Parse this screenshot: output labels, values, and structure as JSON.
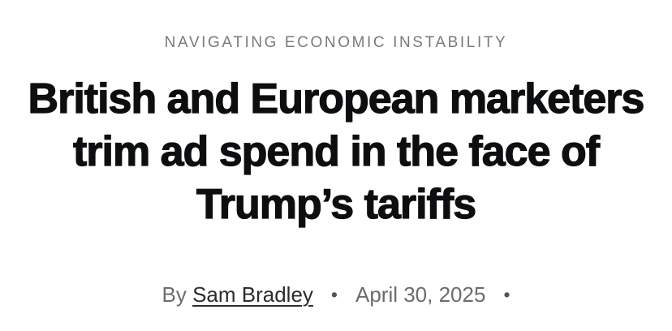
{
  "kicker": {
    "label": "NAVIGATING ECONOMIC INSTABILITY"
  },
  "headline": {
    "full": "British and European marketers trim ad spend in the face of Trump’s tariffs",
    "line1": "British and European marketers",
    "line2": "trim ad spend in the face of",
    "line3": "Trump’s tariffs"
  },
  "byline": {
    "prefix": "By",
    "author": "Sam Bradley",
    "separator": "•",
    "date": "April 30, 2025",
    "trailing_separator": "•"
  },
  "colors": {
    "background": "#ffffff",
    "kicker": "#797a7d",
    "headline": "#0d0e10",
    "byline_muted": "#6b6c6e",
    "author": "#2b2c2e",
    "bullet": "#54555a"
  }
}
